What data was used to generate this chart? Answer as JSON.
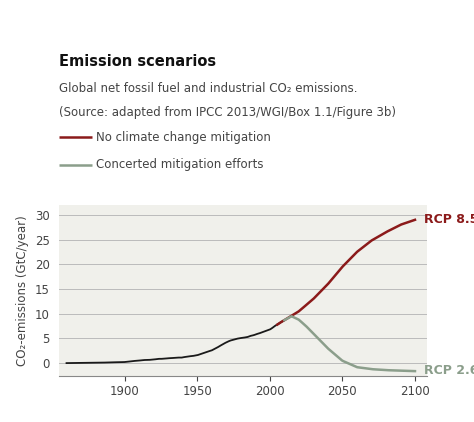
{
  "title": "Emission scenarios",
  "subtitle1": "Global net fossil fuel and industrial CO₂ emissions.",
  "subtitle2": "(Source: adapted from IPCC 2013/WGI/Box 1.1/Figure 3b)",
  "legend_label1": "No climate change mitigation",
  "legend_label2": "Concerted mitigation efforts",
  "ylabel": "CO₂-emissions (GtC/year)",
  "xlim": [
    1855,
    2108
  ],
  "ylim": [
    -2.5,
    32
  ],
  "yticks": [
    0,
    5,
    10,
    15,
    20,
    25,
    30
  ],
  "xticks": [
    1900,
    1950,
    2000,
    2050,
    2100
  ],
  "rcp85_label": "RCP 8.5",
  "rcp26_label": "RCP 2.6",
  "rcp85_color": "#8B1A1A",
  "rcp26_color": "#8B9E8B",
  "historical_color": "#1a1a1a",
  "header_bg": "#ffffff",
  "plot_bg": "#f0f0eb",
  "grid_color": "#bbbbbb",
  "title_fontsize": 10.5,
  "subtitle_fontsize": 8.5,
  "label_fontsize": 8.5,
  "tick_fontsize": 8.5,
  "rcp_fontsize": 9
}
